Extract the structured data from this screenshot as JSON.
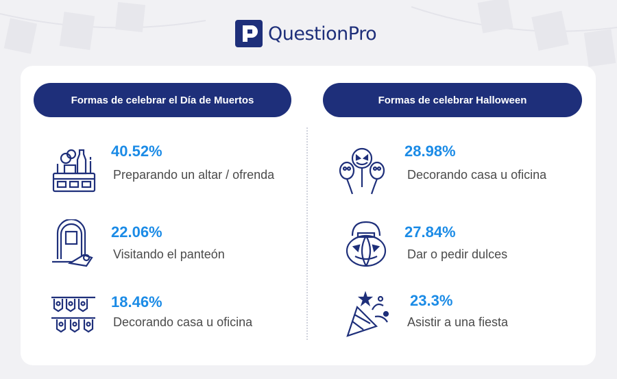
{
  "brand": {
    "name": "QuestionPro",
    "color": "#1e2f7a"
  },
  "colors": {
    "accent": "#1b8be6",
    "text": "#4a4a4a",
    "card": "#ffffff",
    "background": "#f1f1f4"
  },
  "left": {
    "title": "Formas de celebrar el Día de Muertos",
    "items": [
      {
        "icon": "altar-icon",
        "percent": "40.52%",
        "label": "Preparando un altar / ofrenda"
      },
      {
        "icon": "tombstone-icon",
        "percent": "22.06%",
        "label": "Visitando el panteón"
      },
      {
        "icon": "papel-picado-icon",
        "percent": "18.46%",
        "label": "Decorando casa u oficina"
      }
    ]
  },
  "right": {
    "title": "Formas de celebrar Halloween",
    "items": [
      {
        "icon": "halloween-balloons-icon",
        "percent": "28.98%",
        "label": "Decorando casa u oficina"
      },
      {
        "icon": "pumpkin-bucket-icon",
        "percent": "27.84%",
        "label": "Dar o pedir dulces"
      },
      {
        "icon": "party-popper-icon",
        "percent": "23.3%",
        "label": "Asistir a una fiesta"
      }
    ]
  }
}
